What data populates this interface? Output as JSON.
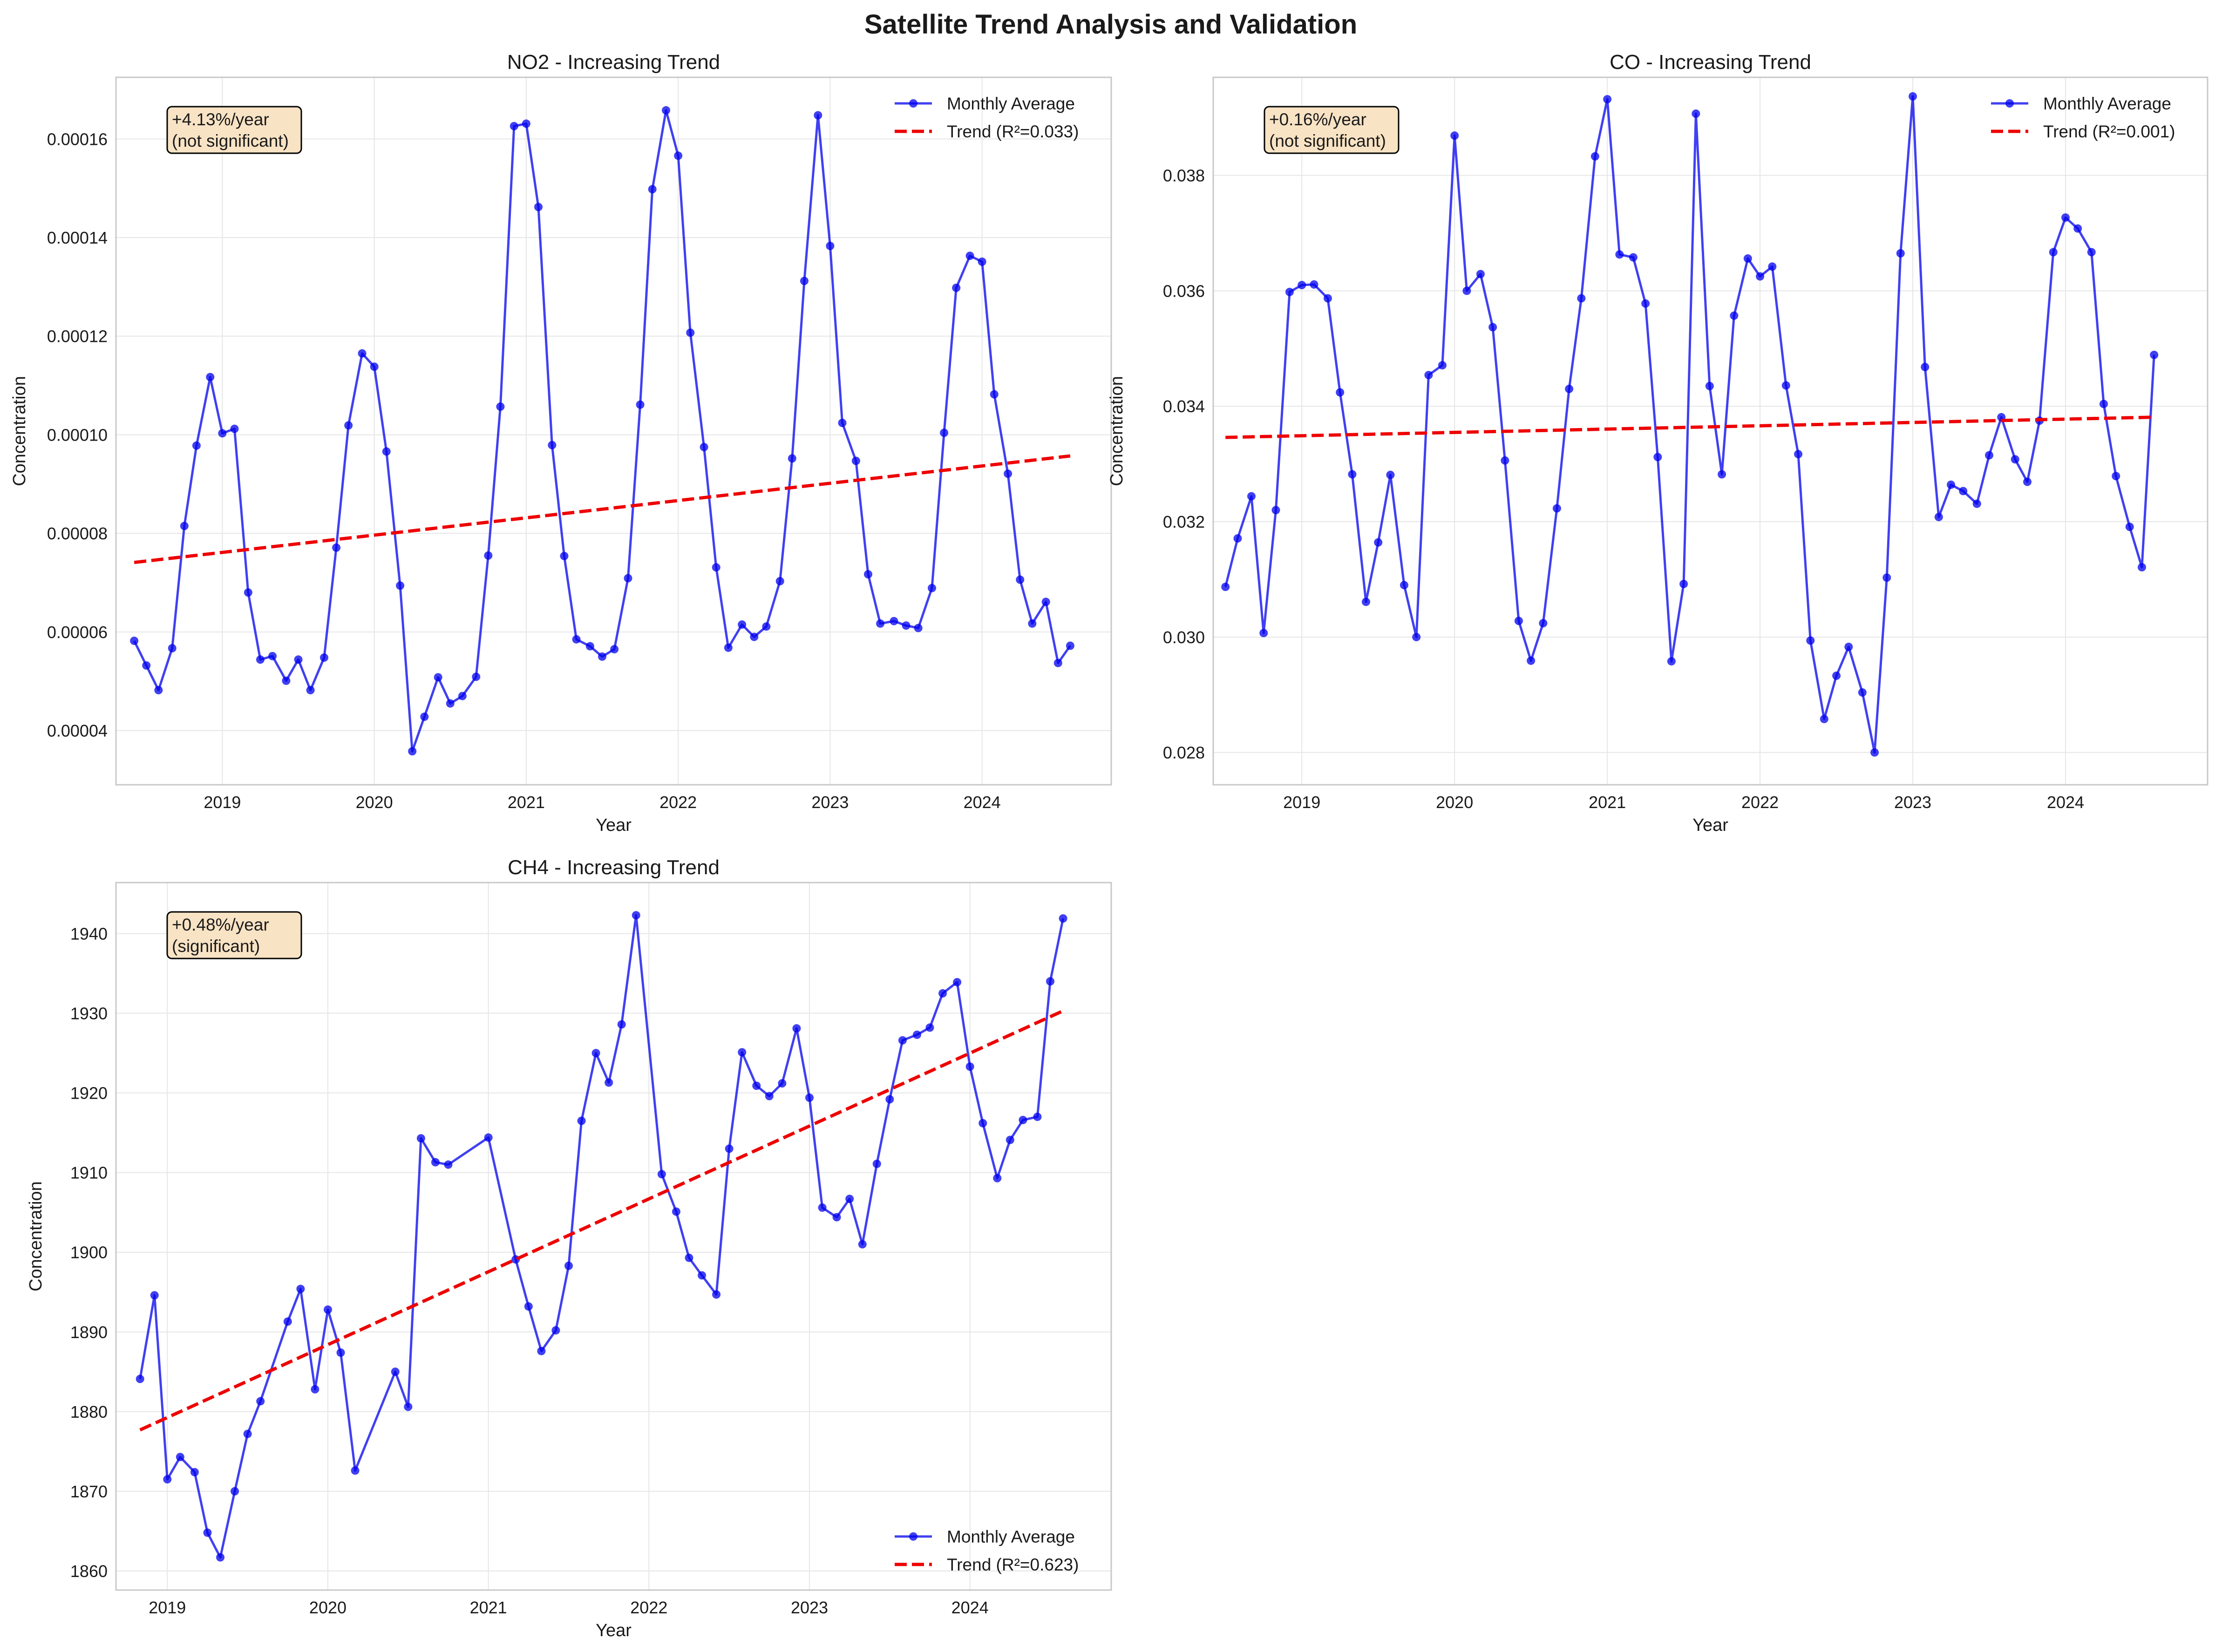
{
  "figure": {
    "title": "Satellite Trend Analysis and Validation",
    "series_color": "#0000ee",
    "trend_color": "#ee0000",
    "annotation_fill": "#f8e3c4"
  },
  "chart_data": [
    {
      "type": "line",
      "title": "NO2 - Increasing Trend",
      "xlabel": "Year",
      "ylabel": "Concentration",
      "xlim": [
        2018.3,
        2024.85
      ],
      "ylim": [
        2.9e-05,
        0.0001725
      ],
      "xticks": [
        2019,
        2020,
        2021,
        2022,
        2023,
        2024
      ],
      "xtick_labels": [
        "2019",
        "2020",
        "2021",
        "2022",
        "2023",
        "2024"
      ],
      "yticks": [
        4e-05,
        6e-05,
        8e-05,
        0.0001,
        0.00012,
        0.00014,
        0.00016
      ],
      "ytick_labels": [
        "0.00004",
        "0.00006",
        "0.00008",
        "0.00010",
        "0.00012",
        "0.00014",
        "0.00016"
      ],
      "grid": true,
      "legend_position": "upper right",
      "legend": [
        "Monthly Average",
        "Trend (R²=0.033)"
      ],
      "annotation": [
        "+4.13%/year",
        "(not significant)"
      ],
      "series": [
        {
          "name": "Monthly Average",
          "x": [
            2018.42,
            2018.5,
            2018.58,
            2018.67,
            2018.75,
            2018.83,
            2018.92,
            2019.0,
            2019.08,
            2019.17,
            2019.25,
            2019.33,
            2019.42,
            2019.5,
            2019.58,
            2019.67,
            2019.75,
            2019.83,
            2019.92,
            2020.0,
            2020.08,
            2020.17,
            2020.25,
            2020.33,
            2020.42,
            2020.5,
            2020.58,
            2020.67,
            2020.75,
            2020.83,
            2020.92,
            2021.0,
            2021.08,
            2021.17,
            2021.25,
            2021.33,
            2021.42,
            2021.5,
            2021.58,
            2021.67,
            2021.75,
            2021.83,
            2021.92,
            2022.0,
            2022.08,
            2022.17,
            2022.25,
            2022.33,
            2022.42,
            2022.5,
            2022.58,
            2022.67,
            2022.75,
            2022.83,
            2022.92,
            2023.0,
            2023.08,
            2023.17,
            2023.25,
            2023.33,
            2023.42,
            2023.5,
            2023.58,
            2023.67,
            2023.75,
            2023.83,
            2023.92,
            2024.0,
            2024.08,
            2024.17,
            2024.25,
            2024.33,
            2024.42,
            2024.5,
            2024.58
          ],
          "y": [
            5.82e-05,
            5.32e-05,
            4.82e-05,
            5.67e-05,
            8.15e-05,
            9.78e-05,
            0.0001117,
            0.0001003,
            0.0001012,
            6.8e-05,
            5.44e-05,
            5.51e-05,
            5.01e-05,
            5.44e-05,
            4.82e-05,
            5.48e-05,
            7.71e-05,
            0.0001019,
            0.0001165,
            0.0001138,
            9.66e-05,
            6.94e-05,
            3.58e-05,
            4.28e-05,
            5.08e-05,
            4.55e-05,
            4.7e-05,
            5.09e-05,
            7.55e-05,
            0.0001057,
            0.0001626,
            0.0001631,
            0.0001462,
            9.79e-05,
            7.54e-05,
            5.85e-05,
            5.71e-05,
            5.5e-05,
            5.65e-05,
            7.09e-05,
            0.0001061,
            0.0001498,
            0.0001658,
            0.0001566,
            0.0001207,
            9.75e-05,
            7.31e-05,
            5.68e-05,
            6.15e-05,
            5.9e-05,
            6.11e-05,
            7.03e-05,
            9.52e-05,
            0.0001312,
            0.0001648,
            0.0001383,
            0.0001024,
            9.47e-05,
            7.17e-05,
            6.17e-05,
            6.22e-05,
            6.13e-05,
            6.08e-05,
            6.89e-05,
            0.0001004,
            0.0001298,
            0.0001363,
            0.0001351,
            0.0001082,
            9.21e-05,
            7.06e-05,
            6.17e-05,
            6.61e-05,
            5.37e-05,
            5.72e-05
          ]
        },
        {
          "name": "Trend (R²=0.033)",
          "x": [
            2018.42,
            2024.58
          ],
          "y": [
            7.41e-05,
            9.57e-05
          ]
        }
      ]
    },
    {
      "type": "line",
      "title": "CO - Increasing Trend",
      "xlabel": "Year",
      "ylabel": "Concentration",
      "xlim": [
        2018.42,
        2024.93
      ],
      "ylim": [
        0.02744,
        0.0397
      ],
      "xticks": [
        2019,
        2020,
        2021,
        2022,
        2023,
        2024
      ],
      "xtick_labels": [
        "2019",
        "2020",
        "2021",
        "2022",
        "2023",
        "2024"
      ],
      "yticks": [
        0.028,
        0.03,
        0.032,
        0.034,
        0.036,
        0.038
      ],
      "ytick_labels": [
        "0.028",
        "0.030",
        "0.032",
        "0.034",
        "0.036",
        "0.038"
      ],
      "grid": true,
      "legend_position": "upper right",
      "legend": [
        "Monthly Average",
        "Trend (R²=0.001)"
      ],
      "annotation": [
        "+0.16%/year",
        "(not significant)"
      ],
      "series": [
        {
          "name": "Monthly Average",
          "x": [
            2018.5,
            2018.58,
            2018.67,
            2018.75,
            2018.83,
            2018.92,
            2019.0,
            2019.08,
            2019.17,
            2019.25,
            2019.33,
            2019.42,
            2019.5,
            2019.58,
            2019.67,
            2019.75,
            2019.83,
            2019.92,
            2020.0,
            2020.08,
            2020.17,
            2020.25,
            2020.33,
            2020.42,
            2020.5,
            2020.58,
            2020.67,
            2020.75,
            2020.83,
            2020.92,
            2021.0,
            2021.08,
            2021.17,
            2021.25,
            2021.33,
            2021.42,
            2021.5,
            2021.58,
            2021.67,
            2021.75,
            2021.83,
            2021.92,
            2022.0,
            2022.08,
            2022.17,
            2022.25,
            2022.33,
            2022.42,
            2022.5,
            2022.58,
            2022.67,
            2022.75,
            2022.83,
            2022.92,
            2023.0,
            2023.08,
            2023.17,
            2023.25,
            2023.33,
            2023.42,
            2023.5,
            2023.58,
            2023.67,
            2023.75,
            2023.83,
            2023.92,
            2024.0,
            2024.08,
            2024.17,
            2024.25,
            2024.33,
            2024.42,
            2024.5,
            2024.58
          ],
          "y": [
            0.03087,
            0.03171,
            0.03244,
            0.03007,
            0.0322,
            0.03598,
            0.0361,
            0.03611,
            0.03587,
            0.03424,
            0.03282,
            0.03061,
            0.03164,
            0.03281,
            0.0309,
            0.03,
            0.03454,
            0.03471,
            0.03869,
            0.036,
            0.03629,
            0.03537,
            0.03306,
            0.03028,
            0.02959,
            0.03024,
            0.03223,
            0.0343,
            0.03587,
            0.03833,
            0.03932,
            0.03663,
            0.03658,
            0.03578,
            0.03312,
            0.02958,
            0.03092,
            0.03907,
            0.03435,
            0.03282,
            0.03557,
            0.03656,
            0.03625,
            0.03642,
            0.03436,
            0.03317,
            0.02994,
            0.02858,
            0.02933,
            0.02983,
            0.02904,
            0.028,
            0.03103,
            0.03665,
            0.03937,
            0.03468,
            0.03208,
            0.03264,
            0.03253,
            0.03231,
            0.03315,
            0.03381,
            0.03308,
            0.03269,
            0.03375,
            0.03667,
            0.03727,
            0.03708,
            0.03667,
            0.03404,
            0.03279,
            0.03191,
            0.03121,
            0.03489
          ]
        },
        {
          "name": "Trend (R²=0.001)",
          "x": [
            2018.5,
            2024.58
          ],
          "y": [
            0.03346,
            0.03381
          ]
        }
      ]
    },
    {
      "type": "line",
      "title": "CH4 - Increasing Trend",
      "xlabel": "Year",
      "ylabel": "Concentration",
      "xlim": [
        2018.68,
        2024.88
      ],
      "ylim": [
        1857.6,
        1946.4
      ],
      "xticks": [
        2019,
        2020,
        2021,
        2022,
        2023,
        2024
      ],
      "xtick_labels": [
        "2019",
        "2020",
        "2021",
        "2022",
        "2023",
        "2024"
      ],
      "yticks": [
        1860,
        1870,
        1880,
        1890,
        1900,
        1910,
        1920,
        1930,
        1940
      ],
      "ytick_labels": [
        "1860",
        "1870",
        "1880",
        "1890",
        "1900",
        "1910",
        "1920",
        "1930",
        "1940"
      ],
      "grid": true,
      "legend_position": "lower right",
      "legend": [
        "Monthly Average",
        "Trend (R²=0.623)"
      ],
      "annotation": [
        "+0.48%/year",
        "(significant)"
      ],
      "series": [
        {
          "name": "Monthly Average",
          "x": [
            2018.83,
            2018.92,
            2019.0,
            2019.08,
            2019.17,
            2019.25,
            2019.33,
            2019.42,
            2019.5,
            2019.58,
            2019.75,
            2019.83,
            2019.92,
            2020.0,
            2020.08,
            2020.17,
            2020.42,
            2020.5,
            2020.58,
            2020.67,
            2020.75,
            2021.0,
            2021.17,
            2021.25,
            2021.33,
            2021.42,
            2021.5,
            2021.58,
            2021.67,
            2021.75,
            2021.83,
            2021.92,
            2022.08,
            2022.17,
            2022.25,
            2022.33,
            2022.42,
            2022.5,
            2022.58,
            2022.67,
            2022.75,
            2022.83,
            2022.92,
            2023.0,
            2023.08,
            2023.17,
            2023.25,
            2023.33,
            2023.42,
            2023.5,
            2023.58,
            2023.67,
            2023.75,
            2023.83,
            2023.92,
            2024.0,
            2024.08,
            2024.17,
            2024.25,
            2024.33,
            2024.42,
            2024.5,
            2024.58
          ],
          "y": [
            1884.1,
            1894.6,
            1871.5,
            1874.3,
            1872.4,
            1864.8,
            1861.7,
            1870.0,
            1877.2,
            1881.3,
            1891.3,
            1895.4,
            1882.8,
            1892.8,
            1887.4,
            1872.6,
            1885.0,
            1880.6,
            1914.3,
            1911.3,
            1911.0,
            1914.4,
            1899.1,
            1893.2,
            1887.6,
            1890.2,
            1898.3,
            1916.5,
            1925.0,
            1921.3,
            1928.6,
            1942.3,
            1909.8,
            1905.1,
            1899.3,
            1897.1,
            1894.7,
            1913.0,
            1925.1,
            1920.9,
            1919.6,
            1921.2,
            1928.1,
            1919.4,
            1905.6,
            1904.4,
            1906.7,
            1901.0,
            1911.1,
            1919.2,
            1926.6,
            1927.3,
            1928.2,
            1932.5,
            1933.9,
            1923.3,
            1916.2,
            1909.3,
            1914.1,
            1916.6,
            1917.0,
            1934.0,
            1941.9
          ]
        },
        {
          "name": "Trend (R²=0.623)",
          "x": [
            2018.83,
            2024.58
          ],
          "y": [
            1877.7,
            1930.3
          ]
        }
      ]
    }
  ]
}
